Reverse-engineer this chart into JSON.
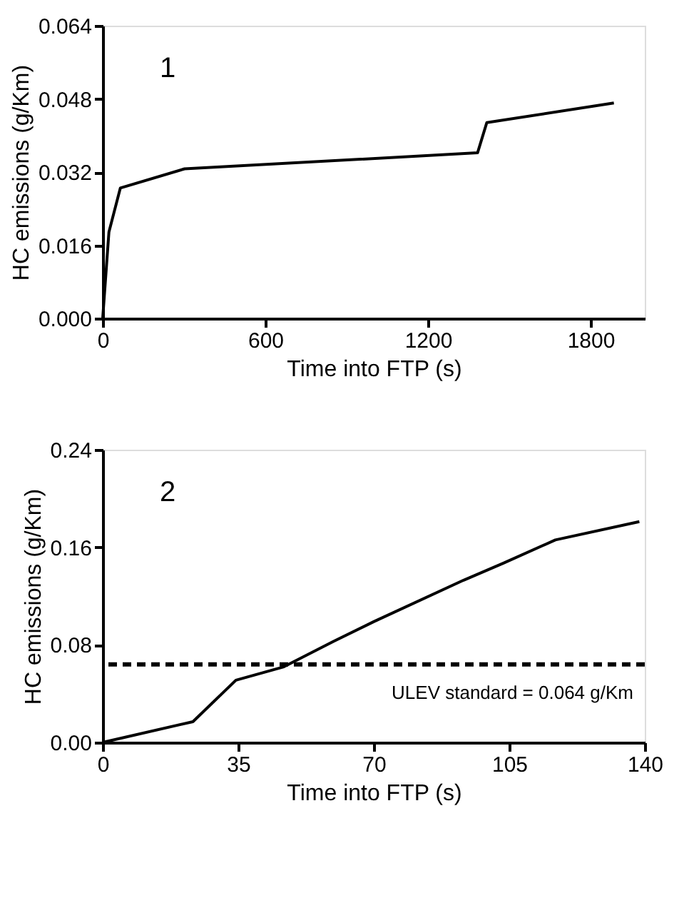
{
  "chart_data": [
    {
      "type": "line",
      "xlabel": "Time into FTP (s)",
      "ylabel": "HC emissions (g/Km)",
      "annotations": [
        "1"
      ],
      "x": [
        0,
        23,
        65,
        302,
        1383,
        1417,
        1886
      ],
      "series": [
        {
          "color": "#000000",
          "values": [
            0,
            0.0189,
            0.0285,
            0.0327,
            0.0362,
            0.0428,
            0.0471
          ]
        }
      ],
      "xlim": [
        0,
        2000
      ],
      "xticks": [
        0,
        600,
        1200,
        1800
      ],
      "ylim": [
        0,
        0.064
      ],
      "yticks": [
        {
          "value": 0,
          "label": "0.000"
        },
        {
          "value": 0.016,
          "label": "0.016"
        },
        {
          "value": 0.032,
          "label": "0.032"
        },
        {
          "value": 0.048,
          "label": "0.048"
        },
        {
          "value": 0.064,
          "label": "0.064"
        }
      ],
      "grid": false,
      "marker": "none",
      "line_style": "solid"
    },
    {
      "type": "line",
      "xlabel": "Time into FTP (s)",
      "ylabel": "HC emissions (g/Km)",
      "annotations": [
        "2"
      ],
      "x": [
        0,
        23.3,
        34.4,
        46.8,
        59.7,
        70,
        93.2,
        103.5,
        116.9,
        138.6
      ],
      "series": [
        {
          "color": "#000000",
          "values": [
            0,
            0.017,
            0.051,
            0.062,
            0.083,
            0.099,
            0.133,
            0.147,
            0.166,
            0.181
          ]
        }
      ],
      "xlim": [
        0,
        140
      ],
      "xticks": [
        0,
        35,
        70,
        105,
        140
      ],
      "ylim": [
        0,
        0.24
      ],
      "yticks": [
        {
          "value": 0,
          "label": "0.00"
        },
        {
          "value": 0.08,
          "label": "0.08"
        },
        {
          "value": 0.16,
          "label": "0.16"
        },
        {
          "value": 0.24,
          "label": "0.24"
        }
      ],
      "ref_lines": [
        {
          "axis": "y",
          "value": 0.064,
          "label": "ULEV standard = 0.064 g/Km",
          "color": "#000000",
          "line_style": "dashed"
        }
      ],
      "grid": false,
      "marker": "none",
      "line_style": "solid"
    }
  ]
}
